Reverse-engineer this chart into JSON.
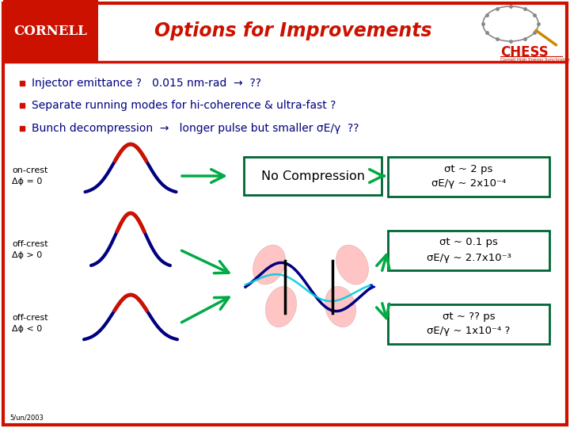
{
  "title": "Options for Improvements",
  "title_color": "#cc1100",
  "background_color": "#ffffff",
  "border_color": "#cc1100",
  "cornell_bg": "#cc1100",
  "cornell_text": "CORNELL",
  "chess_text": "CHESS",
  "chess_subtext": "Cornell High Energy Synchrotron Source",
  "chess_color": "#cc1100",
  "bullet_color": "#000080",
  "bullet_dot_color": "#cc1100",
  "bullet_points": [
    "Injector emittance ?   0.015 nm-rad  →  ??",
    "Separate running modes for hi-coherence & ultra-fast ?",
    "Bunch decompression  →   longer pulse but smaller σE/γ  ??"
  ],
  "row_labels": [
    "on-crest\nΔϕ = 0",
    "off-crest\nΔϕ > 0",
    "off-crest\nΔϕ < 0"
  ],
  "result_line1": [
    "σt ~ 2 ps",
    "σt ~ 0.1 ps",
    "σt ~ ?? ps"
  ],
  "result_line2": [
    "σE/γ ~ 2x10⁻⁴",
    "σE/γ ~ 2.7x10⁻³",
    "σE/γ ~ 1x10⁻⁴ ?"
  ],
  "middle_box_text": "No Compression",
  "arrow_color": "#00aa44",
  "curve_blue": "#000080",
  "curve_red": "#cc1100",
  "curve_pink": "#ffbbbb",
  "curve_cyan": "#00ccdd",
  "box_border_color": "#006633",
  "date_text": "5/un/2003"
}
